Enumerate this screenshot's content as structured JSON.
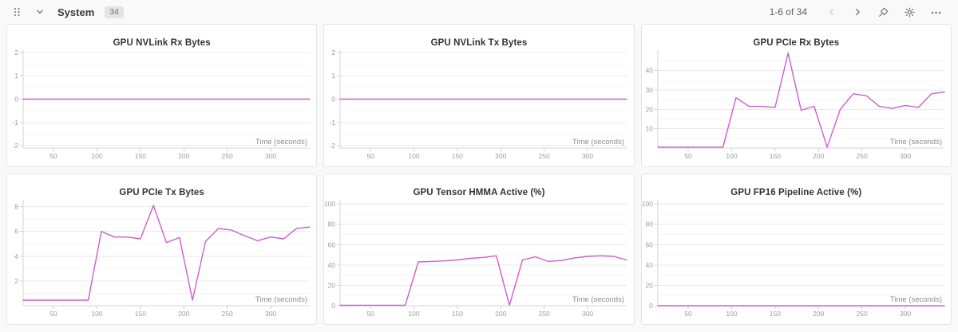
{
  "header": {
    "title": "System",
    "badge": "34",
    "pagination_label": "1-6 of 34",
    "icons": {
      "drag_handle": "drag-handle",
      "collapse": "chevron-down",
      "prev": "chevron-left",
      "next": "chevron-right",
      "pin": "pin",
      "settings": "gear",
      "more": "ellipsis"
    }
  },
  "colors": {
    "line": "#cc5ecc",
    "grid_major": "#eaeaea",
    "grid_minor": "#f4f4f4",
    "axis": "#d6d6d6",
    "tick": "#cfcfcf",
    "tick_label": "#9c9c9c",
    "axis_label": "#8d8d8d"
  },
  "chart_data": [
    {
      "type": "line",
      "title": "GPU NVLink Rx Bytes",
      "xlabel": "Time (seconds)",
      "x": [
        15,
        30,
        45,
        60,
        75,
        90,
        105,
        120,
        135,
        150,
        165,
        180,
        195,
        210,
        225,
        240,
        255,
        270,
        285,
        300,
        315,
        330,
        345
      ],
      "values": [
        0,
        0,
        0,
        0,
        0,
        0,
        0,
        0,
        0,
        0,
        0,
        0,
        0,
        0,
        0,
        0,
        0,
        0,
        0,
        0,
        0,
        0,
        0
      ],
      "ylim": [
        -2.1,
        2.1
      ],
      "yticks": [
        -2,
        -1,
        0,
        1,
        2
      ],
      "xticks": [
        50,
        100,
        150,
        200,
        250,
        300
      ],
      "grid": true,
      "legend": "none"
    },
    {
      "type": "line",
      "title": "GPU NVLink Tx Bytes",
      "xlabel": "Time (seconds)",
      "x": [
        15,
        30,
        45,
        60,
        75,
        90,
        105,
        120,
        135,
        150,
        165,
        180,
        195,
        210,
        225,
        240,
        255,
        270,
        285,
        300,
        315,
        330,
        345
      ],
      "values": [
        0,
        0,
        0,
        0,
        0,
        0,
        0,
        0,
        0,
        0,
        0,
        0,
        0,
        0,
        0,
        0,
        0,
        0,
        0,
        0,
        0,
        0,
        0
      ],
      "ylim": [
        -2.1,
        2.1
      ],
      "yticks": [
        -2,
        -1,
        0,
        1,
        2
      ],
      "xticks": [
        50,
        100,
        150,
        200,
        250,
        300
      ],
      "grid": true,
      "legend": "none"
    },
    {
      "type": "line",
      "title": "GPU PCIe Rx Bytes",
      "xlabel": "Time (seconds)",
      "x": [
        15,
        30,
        45,
        60,
        75,
        90,
        105,
        120,
        135,
        150,
        165,
        180,
        195,
        210,
        225,
        240,
        255,
        270,
        285,
        300,
        315,
        330,
        345
      ],
      "values": [
        0.5,
        0.5,
        0.5,
        0.5,
        0.5,
        0.5,
        26,
        21.5,
        21.5,
        21,
        49,
        19.5,
        21.5,
        0.5,
        20,
        28,
        27,
        21.5,
        20.5,
        22,
        21,
        28,
        29
      ],
      "ylim": [
        0,
        50.5
      ],
      "yticks": [
        10,
        20,
        30,
        40
      ],
      "xticks": [
        50,
        100,
        150,
        200,
        250,
        300
      ],
      "grid": true,
      "legend": "none"
    },
    {
      "type": "line",
      "title": "GPU PCIe Tx Bytes",
      "xlabel": "Time (seconds)",
      "x": [
        15,
        30,
        45,
        60,
        75,
        90,
        105,
        120,
        135,
        150,
        165,
        180,
        195,
        210,
        225,
        240,
        255,
        270,
        285,
        300,
        315,
        330,
        345
      ],
      "values": [
        0.45,
        0.45,
        0.45,
        0.45,
        0.45,
        0.45,
        6.0,
        5.55,
        5.55,
        5.4,
        8.1,
        5.1,
        5.5,
        0.45,
        5.2,
        6.25,
        6.1,
        5.65,
        5.25,
        5.55,
        5.4,
        6.25,
        6.35
      ],
      "ylim": [
        0,
        8.55
      ],
      "yticks": [
        2,
        4,
        6,
        8
      ],
      "xticks": [
        50,
        100,
        150,
        200,
        250,
        300
      ],
      "grid": true,
      "legend": "none"
    },
    {
      "type": "line",
      "title": "GPU Tensor HMMA Active (%)",
      "xlabel": "Time (seconds)",
      "x": [
        15,
        30,
        45,
        60,
        75,
        90,
        105,
        120,
        135,
        150,
        165,
        180,
        195,
        210,
        225,
        240,
        255,
        270,
        285,
        300,
        315,
        330,
        345
      ],
      "values": [
        0.4,
        0.4,
        0.4,
        0.4,
        0.4,
        0.4,
        43,
        43.5,
        44,
        45,
        46.5,
        47.5,
        49,
        0.5,
        45,
        48,
        43.5,
        44.5,
        47,
        48.5,
        49,
        48.5,
        45
      ],
      "ylim": [
        0,
        104
      ],
      "yticks": [
        0,
        20,
        40,
        60,
        80,
        100
      ],
      "xticks": [
        50,
        100,
        150,
        200,
        250,
        300
      ],
      "grid": true,
      "legend": "none"
    },
    {
      "type": "line",
      "title": "GPU FP16 Pipeline Active (%)",
      "xlabel": "Time (seconds)",
      "x": [
        15,
        30,
        45,
        60,
        75,
        90,
        105,
        120,
        135,
        150,
        165,
        180,
        195,
        210,
        225,
        240,
        255,
        270,
        285,
        300,
        315,
        330,
        345
      ],
      "values": [
        0,
        0,
        0,
        0,
        0,
        0,
        0,
        0,
        0,
        0,
        0,
        0,
        0,
        0,
        0,
        0,
        0,
        0,
        0,
        0,
        0,
        0,
        0
      ],
      "ylim": [
        0,
        104
      ],
      "yticks": [
        0,
        20,
        40,
        60,
        80,
        100
      ],
      "xticks": [
        50,
        100,
        150,
        200,
        250,
        300
      ],
      "grid": true,
      "legend": "none"
    }
  ]
}
